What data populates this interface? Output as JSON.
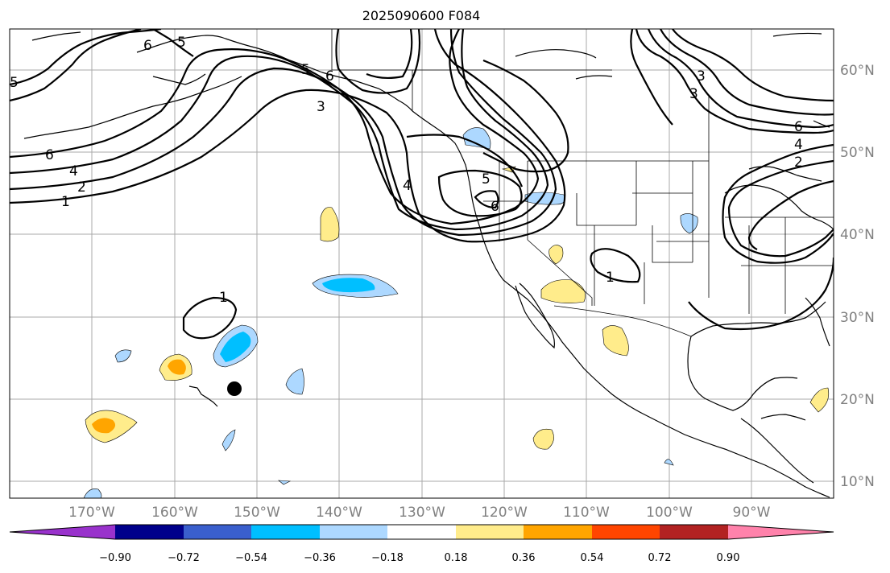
{
  "title": "2025090600 F084",
  "map": {
    "lat_labels": [
      "60°N",
      "50°N",
      "40°N",
      "30°N",
      "20°N",
      "10°N"
    ],
    "lon_labels": [
      "170°W",
      "160°W",
      "150°W",
      "140°W",
      "130°W",
      "120°W",
      "110°W",
      "100°W",
      "90°W"
    ],
    "contour_labels": [
      "6",
      "5",
      "5",
      "6",
      "3",
      "6",
      "4",
      "2",
      "1",
      "4",
      "5",
      "6",
      "1",
      "1",
      "3",
      "3",
      "6",
      "4",
      "2",
      "5"
    ],
    "marker": "station-dot"
  },
  "colorbar": {
    "tick_labels": [
      "−0.90",
      "−0.72",
      "−0.54",
      "−0.36",
      "−0.18",
      "0.18",
      "0.36",
      "0.54",
      "0.72",
      "0.90"
    ],
    "colors": [
      "#9932cc",
      "#00008b",
      "#3a5fcd",
      "#00bfff",
      "#add8ff",
      "#ffffff",
      "#ffec8b",
      "#ffa500",
      "#ff4500",
      "#b22222",
      "#ff82ab"
    ]
  }
}
